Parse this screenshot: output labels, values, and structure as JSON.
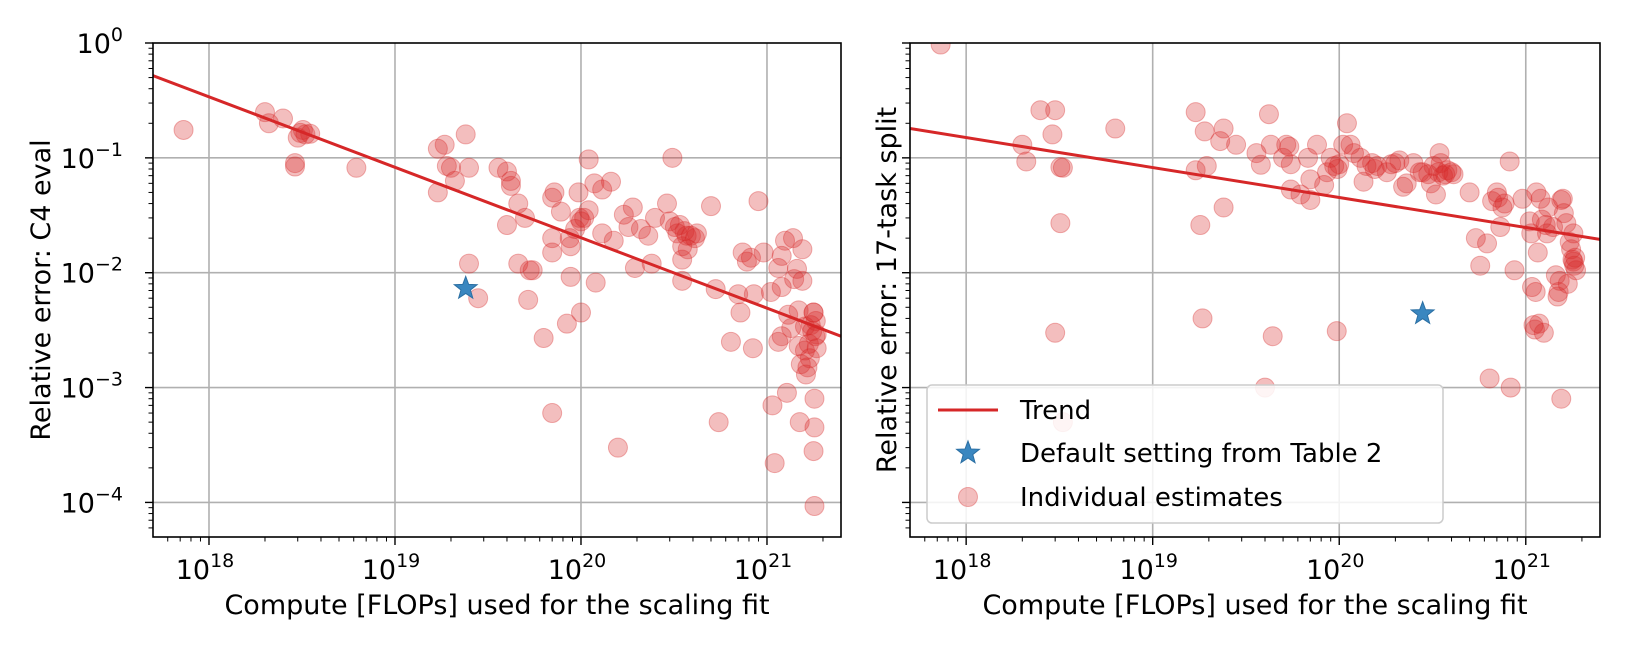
{
  "colors": {
    "trend": "#d62728",
    "point": "#d62728",
    "star": "#3a87c0",
    "grid": "#b0b0b0",
    "axis": "#000000"
  },
  "legend": {
    "placement": "lower-left",
    "entries": [
      {
        "label": "Trend",
        "marker": "line"
      },
      {
        "label": "Default setting from Table 2",
        "marker": "star"
      },
      {
        "label": "Individual estimates",
        "marker": "circle"
      }
    ]
  },
  "chart_data": [
    {
      "type": "scatter",
      "xscale": "log",
      "yscale": "log",
      "xlim": [
        5e+17,
        2.5e+21
      ],
      "ylim": [
        5e-05,
        1.0
      ],
      "grid": true,
      "xlabel": "Compute [FLOPs] used for the scaling fit",
      "ylabel": "Relative error: C4 eval",
      "xticks": [
        {
          "value": 1e+18,
          "base": "10",
          "exp": "18"
        },
        {
          "value": 1e+19,
          "base": "10",
          "exp": "19"
        },
        {
          "value": 1e+20,
          "base": "10",
          "exp": "20"
        },
        {
          "value": 1e+21,
          "base": "10",
          "exp": "21"
        }
      ],
      "yticks": [
        {
          "value": 1.0,
          "base": "10",
          "exp": "0"
        },
        {
          "value": 0.1,
          "base": "10",
          "exp": "−1"
        },
        {
          "value": 0.01,
          "base": "10",
          "exp": "−2"
        },
        {
          "value": 0.001,
          "base": "10",
          "exp": "−3"
        },
        {
          "value": 0.0001,
          "base": "10",
          "exp": "−4"
        }
      ],
      "trend": {
        "name": "Trend",
        "points": [
          [
            5e+17,
            0.52
          ],
          [
            2.5e+21,
            0.0028
          ]
        ]
      },
      "default_setting": {
        "name": "Default setting from Table 2",
        "x": 2.4e+19,
        "y": 0.0073
      },
      "points": [
        [
          7.3e+17,
          0.175
        ],
        [
          2e+18,
          0.25
        ],
        [
          2.1e+18,
          0.2
        ],
        [
          2.5e+18,
          0.22
        ],
        [
          2.9e+18,
          0.09
        ],
        [
          2.9e+18,
          0.084
        ],
        [
          3e+18,
          0.15
        ],
        [
          3.1e+18,
          0.165
        ],
        [
          3.2e+18,
          0.175
        ],
        [
          3.3e+18,
          0.16
        ],
        [
          3.5e+18,
          0.162
        ],
        [
          6.2e+18,
          0.082
        ],
        [
          1.7e+19,
          0.12
        ],
        [
          1.7e+19,
          0.05
        ],
        [
          1.85e+19,
          0.13
        ],
        [
          1.9e+19,
          0.085
        ],
        [
          2e+19,
          0.082
        ],
        [
          2.1e+19,
          0.063
        ],
        [
          2.4e+19,
          0.16
        ],
        [
          2.5e+19,
          0.082
        ],
        [
          2.5e+19,
          0.012
        ],
        [
          2.8e+19,
          0.006
        ],
        [
          3.6e+19,
          0.082
        ],
        [
          4e+19,
          0.076
        ],
        [
          4.2e+19,
          0.063
        ],
        [
          4.2e+19,
          0.057
        ],
        [
          4e+19,
          0.026
        ],
        [
          4.6e+19,
          0.04
        ],
        [
          4.6e+19,
          0.012
        ],
        [
          5e+19,
          0.03
        ],
        [
          5.3e+19,
          0.0105
        ],
        [
          5.5e+19,
          0.0105
        ],
        [
          5.2e+19,
          0.0058
        ],
        [
          6.3e+19,
          0.0027
        ],
        [
          7e+19,
          0.045
        ],
        [
          7.2e+19,
          0.05
        ],
        [
          7e+19,
          0.02
        ],
        [
          7e+19,
          0.015
        ],
        [
          7e+19,
          0.0006
        ],
        [
          7.8e+19,
          0.034
        ],
        [
          8.4e+19,
          0.0036
        ],
        [
          8.7e+19,
          0.02
        ],
        [
          8.8e+19,
          0.017
        ],
        [
          8.8e+19,
          0.0092
        ],
        [
          9.3e+19,
          0.024
        ],
        [
          9.8e+19,
          0.03
        ],
        [
          9.7e+19,
          0.05
        ],
        [
          1e+20,
          0.028
        ],
        [
          1e+20,
          0.0045
        ],
        [
          1.04e+20,
          0.03
        ],
        [
          1.1e+20,
          0.035
        ],
        [
          1.1e+20,
          0.097
        ],
        [
          1.18e+20,
          0.06
        ],
        [
          1.2e+20,
          0.0082
        ],
        [
          1.3e+20,
          0.022
        ],
        [
          1.3e+20,
          0.053
        ],
        [
          1.45e+20,
          0.062
        ],
        [
          1.5e+20,
          0.019
        ],
        [
          1.58e+20,
          0.0003
        ],
        [
          1.7e+20,
          0.032
        ],
        [
          1.8e+20,
          0.025
        ],
        [
          1.9e+20,
          0.037
        ],
        [
          1.95e+20,
          0.011
        ],
        [
          2.1e+20,
          0.024
        ],
        [
          2.3e+20,
          0.021
        ],
        [
          2.4e+20,
          0.012
        ],
        [
          2.5e+20,
          0.03
        ],
        [
          2.9e+20,
          0.04
        ],
        [
          3e+20,
          0.028
        ],
        [
          3.1e+20,
          0.1
        ],
        [
          3.2e+20,
          0.025
        ],
        [
          3.3e+20,
          0.022
        ],
        [
          3.4e+20,
          0.026
        ],
        [
          3.5e+20,
          0.013
        ],
        [
          3.5e+20,
          0.0085
        ],
        [
          3.5e+20,
          0.017
        ],
        [
          3.6e+20,
          0.023
        ],
        [
          3.7e+20,
          0.021
        ],
        [
          3.9e+20,
          0.021
        ],
        [
          4.1e+20,
          0.02
        ],
        [
          4.2e+20,
          0.022
        ],
        [
          3.75e+20,
          0.016
        ],
        [
          5e+20,
          0.038
        ],
        [
          5.3e+20,
          0.0072
        ],
        [
          5.5e+20,
          0.0005
        ],
        [
          6.4e+20,
          0.0025
        ],
        [
          7e+20,
          0.0065
        ],
        [
          7.2e+20,
          0.0045
        ],
        [
          7.4e+20,
          0.015
        ],
        [
          7.8e+20,
          0.0125
        ],
        [
          8.2e+20,
          0.0135
        ],
        [
          8.5e+20,
          0.0065
        ],
        [
          8.4e+20,
          0.0022
        ],
        [
          9e+20,
          0.042
        ],
        [
          9.6e+20,
          0.015
        ],
        [
          1.05e+21,
          0.0068
        ],
        [
          1.07e+21,
          0.0007
        ],
        [
          1.1e+21,
          0.00022
        ],
        [
          1.15e+21,
          0.0025
        ],
        [
          1.15e+21,
          0.011
        ],
        [
          1.2e+21,
          0.0075
        ],
        [
          1.2e+21,
          0.0028
        ],
        [
          1.2e+21,
          0.014
        ],
        [
          1.25e+21,
          0.019
        ],
        [
          1.28e+21,
          0.0009
        ],
        [
          1.3e+21,
          0.0043
        ],
        [
          1.35e+21,
          0.0033
        ],
        [
          1.38e+21,
          0.02
        ],
        [
          1.4e+21,
          0.0088
        ],
        [
          1.45e+21,
          0.0108
        ],
        [
          1.48e+21,
          0.0047
        ],
        [
          1.48e+21,
          0.0023
        ],
        [
          1.5e+21,
          0.0005
        ],
        [
          1.52e+21,
          0.0016
        ],
        [
          1.55e+21,
          0.0085
        ],
        [
          1.55e+21,
          0.016
        ],
        [
          1.6e+21,
          0.0034
        ],
        [
          1.6e+21,
          0.0021
        ],
        [
          1.62e+21,
          0.0013
        ],
        [
          1.65e+21,
          0.0015
        ],
        [
          1.68e+21,
          0.0024
        ],
        [
          1.7e+21,
          0.0018
        ],
        [
          1.72e+21,
          0.0035
        ],
        [
          1.75e+21,
          0.0031
        ],
        [
          1.78e+21,
          0.0045
        ],
        [
          1.78e+21,
          0.0045
        ],
        [
          1.8e+21,
          0.0008
        ],
        [
          1.8e+21,
          0.00045
        ],
        [
          1.78e+21,
          0.00028
        ],
        [
          1.8e+21,
          9.3e-05
        ],
        [
          1.82e+21,
          0.0028
        ],
        [
          1.83e+21,
          0.0038
        ],
        [
          1.85e+21,
          0.0029
        ],
        [
          1.85e+21,
          0.0022
        ]
      ]
    },
    {
      "type": "scatter",
      "xscale": "log",
      "yscale": "log",
      "xlim": [
        5e+17,
        2.5e+21
      ],
      "ylim": [
        5e-05,
        1.0
      ],
      "grid": true,
      "xlabel": "Compute [FLOPs] used for the scaling fit",
      "ylabel": "Relative error: 17-task split",
      "xticks": [
        {
          "value": 1e+18,
          "base": "10",
          "exp": "18"
        },
        {
          "value": 1e+19,
          "base": "10",
          "exp": "19"
        },
        {
          "value": 1e+20,
          "base": "10",
          "exp": "20"
        },
        {
          "value": 1e+21,
          "base": "10",
          "exp": "21"
        }
      ],
      "yticks": [],
      "trend": {
        "name": "Trend",
        "points": [
          [
            5e+17,
            0.18
          ],
          [
            2.5e+21,
            0.0195
          ]
        ]
      },
      "default_setting": {
        "name": "Default setting from Table 2",
        "x": 2.8e+20,
        "y": 0.0044
      },
      "points": [
        [
          7.3e+17,
          0.97
        ],
        [
          2e+18,
          0.13
        ],
        [
          2.1e+18,
          0.093
        ],
        [
          2.5e+18,
          0.26
        ],
        [
          2.9e+18,
          0.16
        ],
        [
          3e+18,
          0.26
        ],
        [
          3e+18,
          0.003
        ],
        [
          3.2e+18,
          0.083
        ],
        [
          3.3e+18,
          0.082
        ],
        [
          3.2e+18,
          0.027
        ],
        [
          3.3e+18,
          0.0005
        ],
        [
          6.3e+18,
          0.18
        ],
        [
          1.7e+19,
          0.25
        ],
        [
          1.7e+19,
          0.078
        ],
        [
          1.8e+19,
          0.026
        ],
        [
          1.85e+19,
          0.004
        ],
        [
          1.9e+19,
          0.17
        ],
        [
          1.95e+19,
          0.085
        ],
        [
          2.3e+19,
          0.14
        ],
        [
          2.4e+19,
          0.18
        ],
        [
          2.4e+19,
          0.037
        ],
        [
          2.8e+19,
          0.13
        ],
        [
          3.6e+19,
          0.11
        ],
        [
          3.8e+19,
          0.087
        ],
        [
          4e+19,
          0.001
        ],
        [
          4.2e+19,
          0.24
        ],
        [
          4.3e+19,
          0.13
        ],
        [
          4.4e+19,
          0.0028
        ],
        [
          5e+19,
          0.1
        ],
        [
          5.2e+19,
          0.13
        ],
        [
          5.4e+19,
          0.125
        ],
        [
          5.5e+19,
          0.088
        ],
        [
          5.5e+19,
          0.053
        ],
        [
          6.2e+19,
          0.048
        ],
        [
          6.8e+19,
          0.1
        ],
        [
          7e+19,
          0.043
        ],
        [
          7e+19,
          0.065
        ],
        [
          7.6e+19,
          0.13
        ],
        [
          8.3e+19,
          0.058
        ],
        [
          8.6e+19,
          0.075
        ],
        [
          9e+19,
          0.1
        ],
        [
          9.4e+19,
          0.085
        ],
        [
          9.8e+19,
          0.08
        ],
        [
          9.7e+19,
          0.0031
        ],
        [
          1e+20,
          0.088
        ],
        [
          1.05e+20,
          0.13
        ],
        [
          1.1e+20,
          0.2
        ],
        [
          1.15e+20,
          0.13
        ],
        [
          1.2e+20,
          0.11
        ],
        [
          1.3e+20,
          0.1
        ],
        [
          1.35e+20,
          0.062
        ],
        [
          1.4e+20,
          0.085
        ],
        [
          1.5e+20,
          0.09
        ],
        [
          1.55e+20,
          0.08
        ],
        [
          1.6e+20,
          0.085
        ],
        [
          1.8e+20,
          0.075
        ],
        [
          1.9e+20,
          0.088
        ],
        [
          2e+20,
          0.09
        ],
        [
          2.1e+20,
          0.095
        ],
        [
          2.2e+20,
          0.056
        ],
        [
          2.3e+20,
          0.06
        ],
        [
          2.5e+20,
          0.09
        ],
        [
          2.7e+20,
          0.075
        ],
        [
          2.8e+20,
          0.075
        ],
        [
          3e+20,
          0.072
        ],
        [
          3.1e+20,
          0.06
        ],
        [
          3.2e+20,
          0.085
        ],
        [
          3.3e+20,
          0.048
        ],
        [
          3.4e+20,
          0.075
        ],
        [
          3.45e+20,
          0.11
        ],
        [
          3.5e+20,
          0.09
        ],
        [
          3.6e+20,
          0.07
        ],
        [
          3.7e+20,
          0.072
        ],
        [
          3.8e+20,
          0.078
        ],
        [
          4e+20,
          0.075
        ],
        [
          4.1e+20,
          0.072
        ],
        [
          5e+20,
          0.05
        ],
        [
          5.4e+20,
          0.02
        ],
        [
          5.7e+20,
          0.0115
        ],
        [
          6.2e+20,
          0.018
        ],
        [
          6.4e+20,
          0.0012
        ],
        [
          6.6e+20,
          0.042
        ],
        [
          7e+20,
          0.05
        ],
        [
          7.1e+20,
          0.045
        ],
        [
          7.3e+20,
          0.025
        ],
        [
          7.5e+20,
          0.037
        ],
        [
          7.7e+20,
          0.04
        ],
        [
          8.2e+20,
          0.093
        ],
        [
          8.3e+20,
          0.001
        ],
        [
          8.7e+20,
          0.0105
        ],
        [
          9.6e+20,
          0.044
        ],
        [
          1.05e+21,
          0.028
        ],
        [
          1.07e+21,
          0.022
        ],
        [
          1.08e+21,
          0.0075
        ],
        [
          1.1e+21,
          0.0035
        ],
        [
          1.12e+21,
          0.0032
        ],
        [
          1.13e+21,
          0.0068
        ],
        [
          1.14e+21,
          0.05
        ],
        [
          1.16e+21,
          0.015
        ],
        [
          1.18e+21,
          0.0036
        ],
        [
          1.2e+21,
          0.044
        ],
        [
          1.22e+21,
          0.029
        ],
        [
          1.25e+21,
          0.003
        ],
        [
          1.28e+21,
          0.026
        ],
        [
          1.3e+21,
          0.022
        ],
        [
          1.32e+21,
          0.037
        ],
        [
          1.4e+21,
          0.025
        ],
        [
          1.45e+21,
          0.0095
        ],
        [
          1.48e+21,
          0.0062
        ],
        [
          1.5e+21,
          0.0068
        ],
        [
          1.52e+21,
          0.0085
        ],
        [
          1.55e+21,
          0.0008
        ],
        [
          1.55e+21,
          0.043
        ],
        [
          1.58e+21,
          0.044
        ],
        [
          1.6e+21,
          0.033
        ],
        [
          1.65e+21,
          0.027
        ],
        [
          1.68e+21,
          0.008
        ],
        [
          1.72e+21,
          0.0185
        ],
        [
          1.75e+21,
          0.016
        ],
        [
          1.78e+21,
          0.013
        ],
        [
          1.8e+21,
          0.0125
        ],
        [
          1.82e+21,
          0.0115
        ],
        [
          1.84e+21,
          0.0135
        ],
        [
          1.86e+21,
          0.0105
        ],
        [
          1.8e+21,
          0.022
        ]
      ]
    }
  ]
}
